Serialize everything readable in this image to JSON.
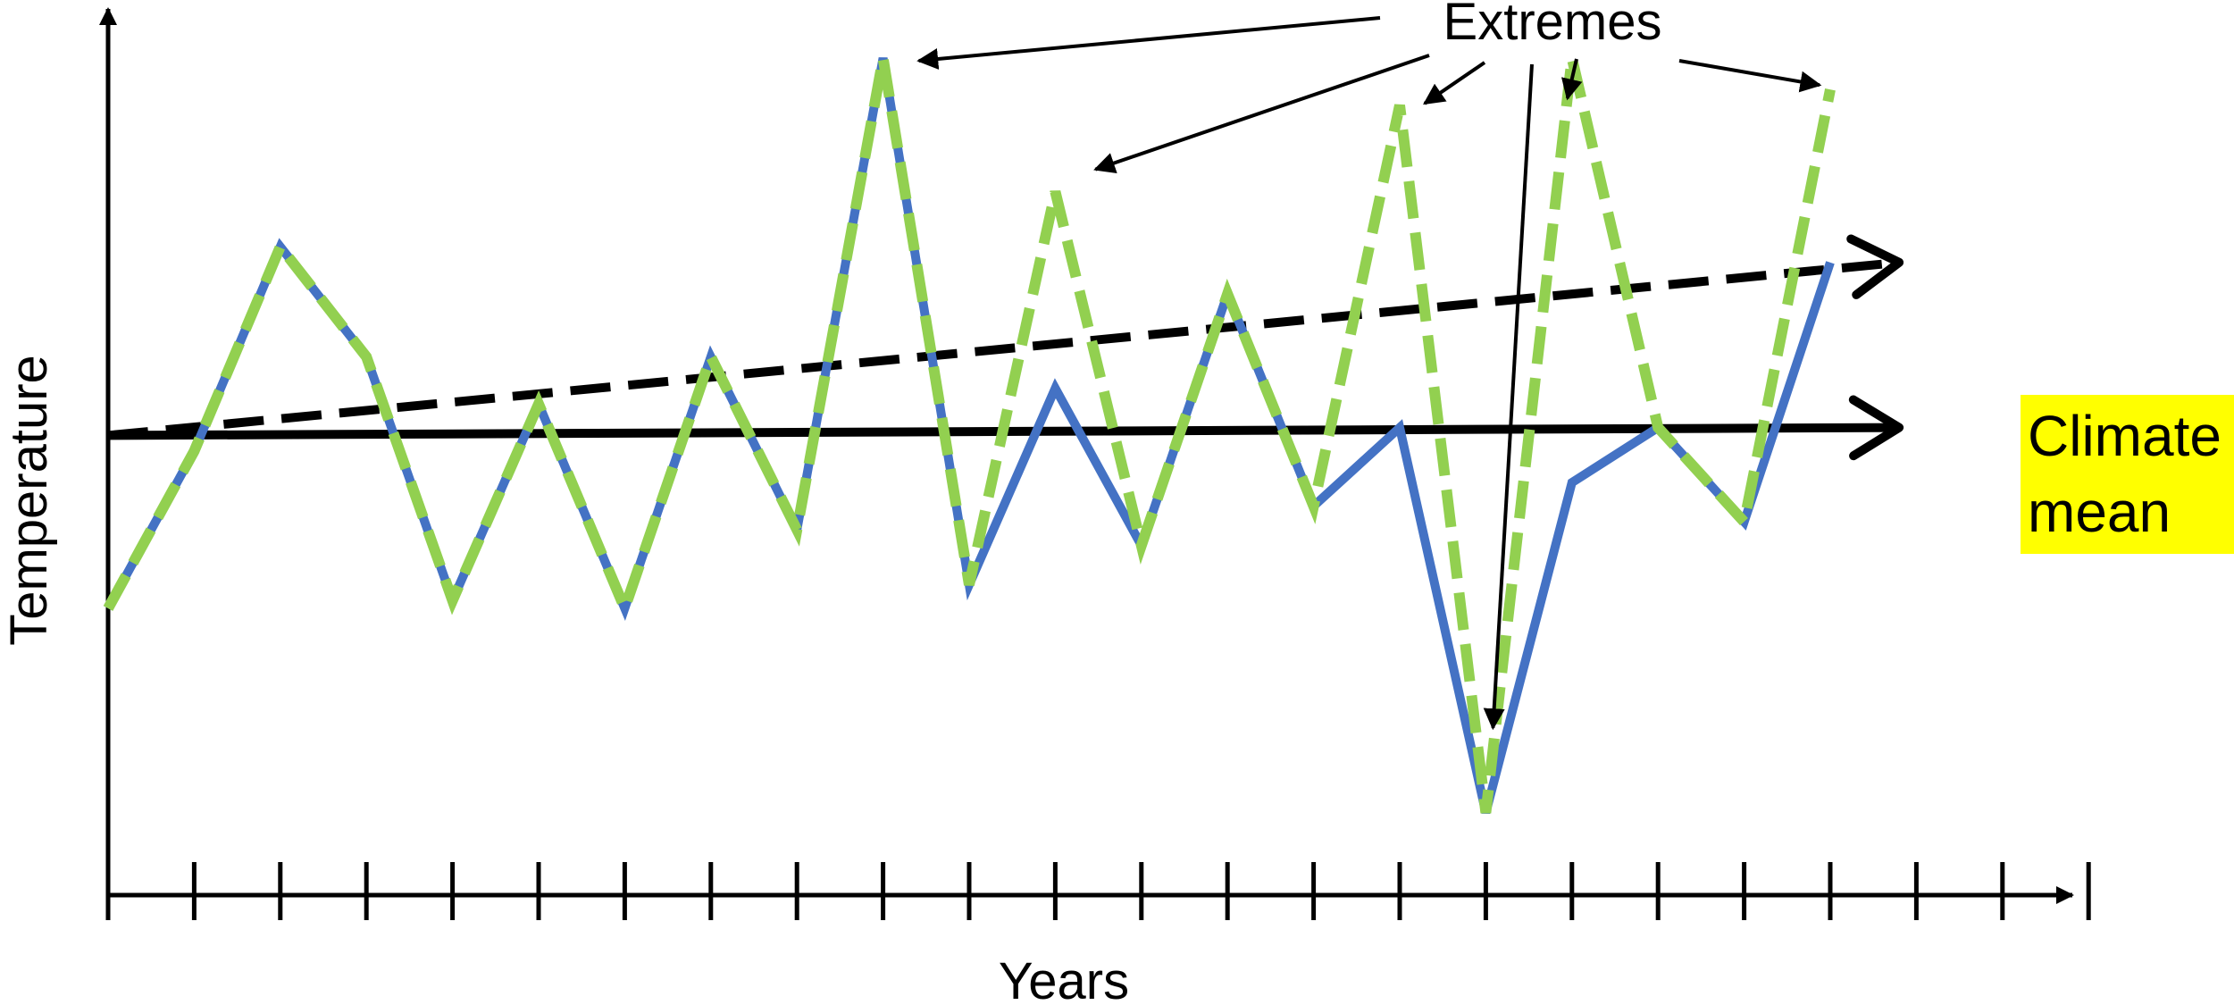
{
  "colors": {
    "observed": "#4472C4",
    "extremes": "#92D050",
    "mean": "#000000",
    "highlight": "#FFFF00"
  },
  "labels": {
    "x_axis": "Years",
    "y_axis": "Temperature",
    "mean_line1": "Climate",
    "mean_line2": "mean",
    "extremes": "Extremes"
  },
  "chart_data": {
    "type": "line",
    "x_ticks": 24,
    "series": [
      {
        "style": "solid-blue",
        "values": [
          3.0,
          5.0,
          7.6,
          6.2,
          3.1,
          5.6,
          3.0,
          6.2,
          4.0,
          10.0,
          3.3,
          5.8,
          3.8,
          7.0,
          4.3,
          5.3,
          0.4,
          4.6,
          5.3,
          4.1,
          7.4
        ]
      },
      {
        "style": "dashed-green",
        "values": [
          3.0,
          5.0,
          7.6,
          6.2,
          3.1,
          5.6,
          3.0,
          6.2,
          4.0,
          10.0,
          3.3,
          8.3,
          3.8,
          7.0,
          4.3,
          9.4,
          0.4,
          10.0,
          5.3,
          4.1,
          9.6
        ]
      },
      {
        "style": "trend-solid",
        "name": "Climate mean",
        "values": [
          5.2,
          5.3
        ]
      },
      {
        "style": "trend-dashed",
        "values": [
          5.2,
          7.4
        ]
      }
    ]
  }
}
